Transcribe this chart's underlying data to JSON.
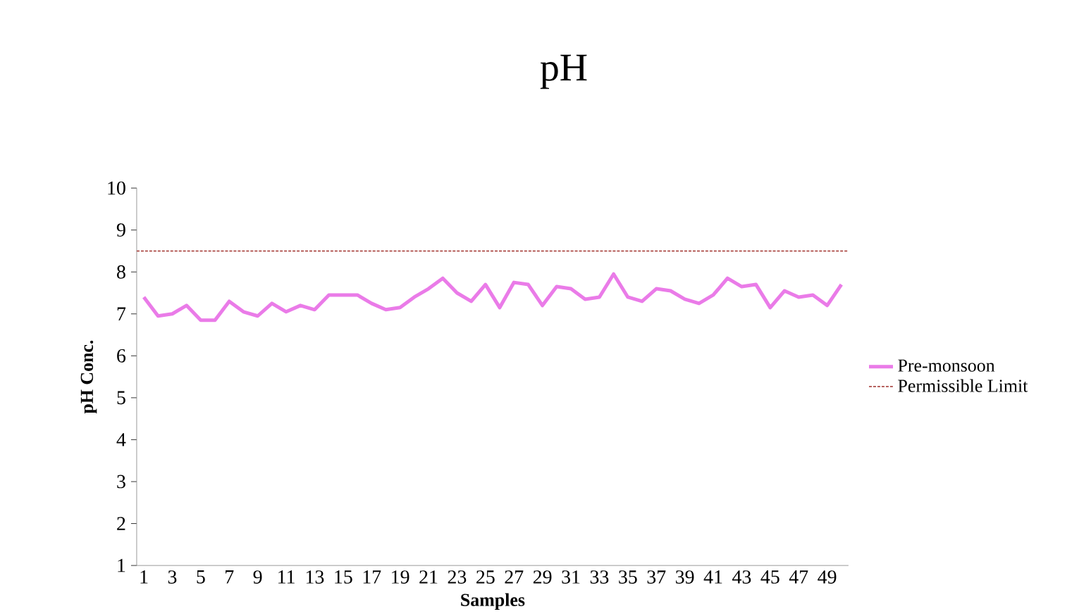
{
  "chart_data": {
    "type": "line",
    "title": "pH",
    "xlabel": "Samples",
    "ylabel": "pH Conc.",
    "categories": [
      "1",
      null,
      "3",
      null,
      "5",
      null,
      "7",
      null,
      "9",
      null,
      "11",
      null,
      "13",
      null,
      "15",
      null,
      "17",
      null,
      "19",
      null,
      "21",
      null,
      "23",
      null,
      "25",
      null,
      "27",
      null,
      "29",
      null,
      "31",
      null,
      "33",
      null,
      "35",
      null,
      "37",
      null,
      "39",
      null,
      "41",
      null,
      "43",
      null,
      "45",
      null,
      "47",
      null,
      "49",
      null
    ],
    "series": [
      {
        "name": "Pre-monsoon",
        "color": "#ea7be8",
        "values": [
          7.4,
          6.95,
          7.0,
          7.2,
          6.85,
          6.85,
          7.3,
          7.05,
          6.95,
          7.25,
          7.05,
          7.2,
          7.1,
          7.45,
          7.45,
          7.45,
          7.25,
          7.1,
          7.15,
          7.4,
          7.6,
          7.85,
          7.5,
          7.3,
          7.7,
          7.15,
          7.75,
          7.7,
          7.2,
          7.65,
          7.6,
          7.35,
          7.4,
          7.95,
          7.4,
          7.3,
          7.6,
          7.55,
          7.35,
          7.25,
          7.45,
          7.85,
          7.65,
          7.7,
          7.15,
          7.55,
          7.4,
          7.45,
          7.2,
          7.7
        ]
      }
    ],
    "ylim": [
      1,
      10
    ],
    "yticks": [
      1,
      2,
      3,
      4,
      5,
      6,
      7,
      8,
      9,
      10
    ],
    "ref_lines": [
      {
        "axis": "y",
        "value": 8.5,
        "label": "Permissible Limit",
        "color": "#a0302c",
        "line_style": "dashed"
      }
    ],
    "legend": "right",
    "grid": false,
    "marker": "none",
    "line_style": "solid"
  }
}
